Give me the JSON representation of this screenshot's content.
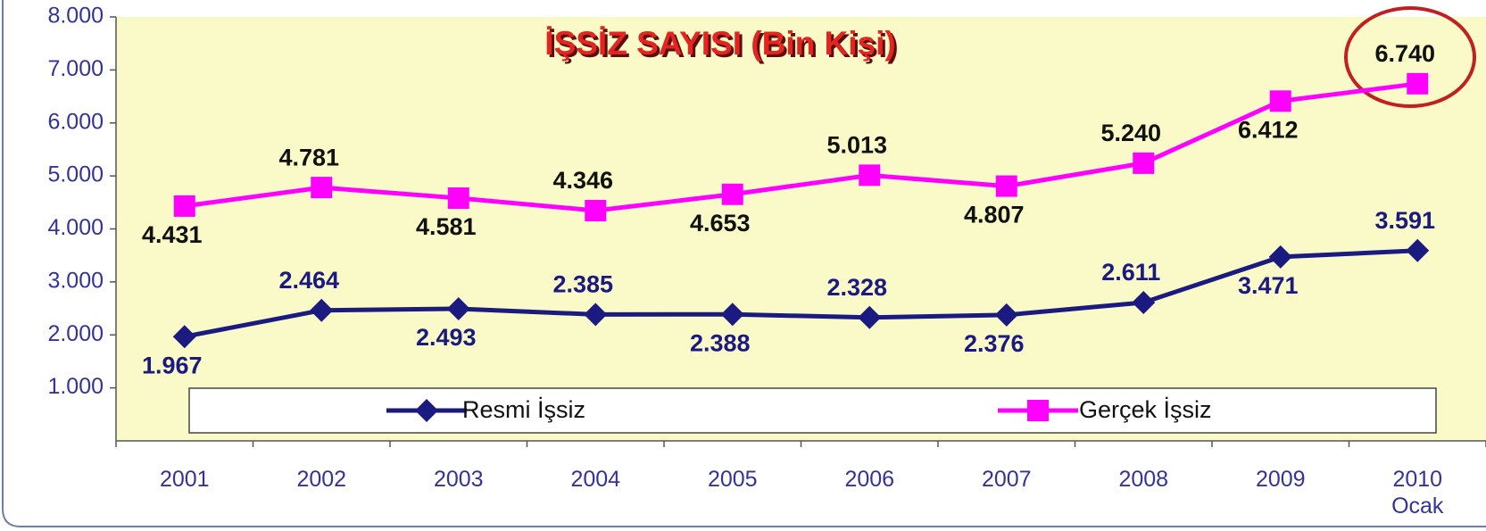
{
  "chart_data": {
    "type": "line",
    "title": "İŞSİZ SAYISI (Bin Kişi)",
    "categories": [
      "2001",
      "2002",
      "2003",
      "2004",
      "2005",
      "2006",
      "2007",
      "2008",
      "2009",
      "2010\nOcak"
    ],
    "series": [
      {
        "name": "Resmi İşsiz",
        "color": "#1a1a80",
        "marker": "diamond",
        "values": [
          1967,
          2464,
          2493,
          2385,
          2388,
          2328,
          2376,
          2611,
          3471,
          3591
        ],
        "value_labels": [
          "1.967",
          "2.464",
          "2.493",
          "2.385",
          "2.388",
          "2.328",
          "2.376",
          "2.611",
          "3.471",
          "3.591"
        ]
      },
      {
        "name": "Gerçek İşsiz",
        "color": "#ff00ff",
        "marker": "square",
        "values": [
          4431,
          4781,
          4581,
          4346,
          4653,
          5013,
          4807,
          5240,
          6412,
          6740
        ],
        "value_labels": [
          "4.431",
          "4.781",
          "4.581",
          "4.346",
          "4.653",
          "5.013",
          "4.807",
          "5.240",
          "6.412",
          "6.740"
        ]
      }
    ],
    "ylim": [
      0,
      8000
    ],
    "yticks": [
      {
        "value": 1000,
        "label": "1.000"
      },
      {
        "value": 2000,
        "label": "2.000"
      },
      {
        "value": 3000,
        "label": "3.000"
      },
      {
        "value": 4000,
        "label": "4.000"
      },
      {
        "value": 5000,
        "label": "5.000"
      },
      {
        "value": 6000,
        "label": "6.000"
      },
      {
        "value": 7000,
        "label": "7.000"
      },
      {
        "value": 8000,
        "label": "8.000"
      }
    ],
    "legend": "bottom"
  }
}
